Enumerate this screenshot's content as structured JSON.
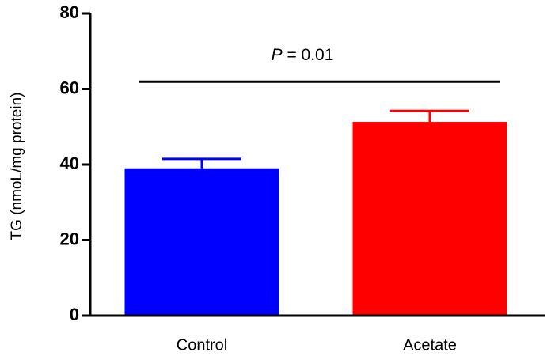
{
  "chart_data": {
    "type": "bar",
    "ylabel": "TG (nmoL/mg protein)",
    "annotation": [
      "P",
      "= 0.01"
    ],
    "categories": [
      "Control",
      "Acetate"
    ],
    "values": [
      39,
      51.3
    ],
    "errors": [
      2.5,
      2.9
    ],
    "colors": [
      "#0000ff",
      "#ff0000"
    ],
    "ylim": [
      0,
      80
    ],
    "yticks": [
      0,
      20,
      40,
      60,
      80
    ]
  }
}
